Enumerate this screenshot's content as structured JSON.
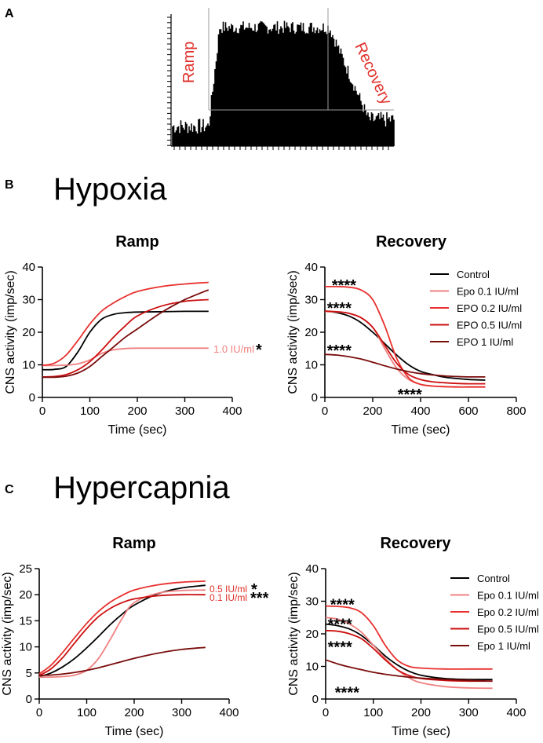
{
  "panel_letters": {
    "a": "A",
    "b": "B",
    "c": "C"
  },
  "section_titles": {
    "hypoxia": "Hypoxia",
    "hypercapnia": "Hypercapnia"
  },
  "colors": {
    "control": "#000000",
    "epo01": "#f08080",
    "epo02": "#e8312e",
    "epo05": "#cc1010",
    "epo1": "#7a0c0c",
    "annot_red": "#e0302a",
    "annot_pink": "#f08080"
  },
  "chart_data": [
    {
      "id": "A",
      "type": "bar",
      "description_labels": {
        "ramp": "Ramp",
        "recovery": "Recovery"
      },
      "title": "",
      "xlabel": "",
      "ylabel": "",
      "phases": [
        "baseline",
        "ramp",
        "plateau",
        "recovery",
        "baseline"
      ],
      "relative_activity": {
        "baseline": 0.15,
        "ramp_start": 0.15,
        "plateau": 0.9,
        "recovery_end": 0.2
      }
    },
    {
      "id": "B-ramp",
      "type": "line",
      "title": "Ramp",
      "xlabel": "Time (sec)",
      "ylabel": "CNS activity (imp/sec)",
      "xlim": [
        0,
        400
      ],
      "ylim": [
        0,
        40
      ],
      "xticks": [
        0,
        100,
        200,
        300,
        400
      ],
      "yticks": [
        0,
        10,
        20,
        30,
        40
      ],
      "annotation": {
        "text": "1.0 IU/ml",
        "star": "*",
        "y": 15
      },
      "series": [
        {
          "name": "Control",
          "color": "#000000",
          "x": [
            0,
            25,
            50,
            75,
            100,
            125,
            150,
            175,
            200,
            250,
            300,
            350
          ],
          "y": [
            8.5,
            8.6,
            9.5,
            14,
            20,
            24,
            25.5,
            26,
            26.2,
            26.3,
            26.4,
            26.4
          ]
        },
        {
          "name": "Epo 0.1 IU/ml",
          "color": "#f08080",
          "x": [
            0,
            25,
            50,
            75,
            100,
            125,
            150,
            175,
            200,
            250,
            300,
            350
          ],
          "y": [
            9.8,
            9.8,
            9.9,
            10.3,
            11.5,
            13.5,
            14.6,
            15,
            15.1,
            15.1,
            15.1,
            15.1
          ]
        },
        {
          "name": "EPO 0.2 IU/ml",
          "color": "#e8312e",
          "x": [
            0,
            25,
            50,
            75,
            100,
            125,
            150,
            175,
            200,
            250,
            300,
            350
          ],
          "y": [
            9.8,
            10.5,
            13,
            17.5,
            22.5,
            26.5,
            29,
            31,
            32.5,
            34,
            34.8,
            35.3
          ]
        },
        {
          "name": "EPO 0.5 IU/ml",
          "color": "#cc1010",
          "x": [
            0,
            25,
            50,
            75,
            100,
            125,
            150,
            175,
            200,
            250,
            300,
            350
          ],
          "y": [
            6.3,
            6.4,
            7,
            8.5,
            11,
            14.5,
            18.5,
            22,
            25,
            28,
            29.5,
            30
          ]
        },
        {
          "name": "EPO 1 IU/ml",
          "color": "#7a0c0c",
          "x": [
            0,
            25,
            50,
            75,
            100,
            125,
            150,
            175,
            200,
            250,
            300,
            350
          ],
          "y": [
            6.2,
            6.2,
            6.5,
            7.5,
            9.5,
            12.5,
            15.5,
            18.5,
            21,
            26,
            30,
            33
          ]
        }
      ]
    },
    {
      "id": "B-recovery",
      "type": "line",
      "title": "Recovery",
      "xlabel": "Time (sec)",
      "ylabel": "CNS activity (imp/sec)",
      "xlim": [
        0,
        800
      ],
      "ylim": [
        0,
        40
      ],
      "xticks": [
        0,
        200,
        400,
        600,
        800
      ],
      "yticks": [
        0,
        10,
        20,
        30,
        40
      ],
      "stars": [
        {
          "text": "****",
          "x": 80,
          "y": 35
        },
        {
          "text": "****",
          "x": 60,
          "y": 28
        },
        {
          "text": "****",
          "x": 60,
          "y": 15
        },
        {
          "text": "****",
          "x": 355,
          "y": 1.5
        }
      ],
      "legend": [
        "Control",
        "Epo 0.1 IU/ml",
        "EPO 0.2 IU/ml",
        "EPO 0.5 IU/ml",
        "EPO 1 IU/ml"
      ],
      "series": [
        {
          "name": "Control",
          "color": "#000000",
          "x": [
            0,
            50,
            100,
            150,
            200,
            250,
            300,
            350,
            400,
            450,
            500,
            550,
            600,
            670
          ],
          "y": [
            26.5,
            26,
            25,
            23,
            20,
            16.5,
            13,
            10,
            8,
            7,
            6.2,
            5.8,
            5.5,
            5.3
          ]
        },
        {
          "name": "Epo 0.1 IU/ml",
          "color": "#f08080",
          "x": [
            0,
            50,
            100,
            150,
            200,
            250,
            300,
            350,
            400,
            450,
            500,
            550,
            600,
            670
          ],
          "y": [
            26.3,
            26.2,
            25.8,
            24.5,
            21.5,
            15,
            9,
            5.5,
            4,
            3.5,
            3.3,
            3.2,
            3.2,
            3.2
          ]
        },
        {
          "name": "EPO 0.2 IU/ml",
          "color": "#e8312e",
          "x": [
            0,
            50,
            100,
            150,
            200,
            250,
            300,
            350,
            400,
            450,
            500,
            550,
            600,
            670
          ],
          "y": [
            34,
            34,
            33.8,
            33,
            30,
            22,
            12,
            6,
            4,
            3.5,
            3.3,
            3.2,
            3.2,
            3.2
          ]
        },
        {
          "name": "EPO 0.5 IU/ml",
          "color": "#cc1010",
          "x": [
            0,
            50,
            100,
            150,
            200,
            250,
            300,
            350,
            400,
            450,
            500,
            550,
            600,
            670
          ],
          "y": [
            26.5,
            26.3,
            25.8,
            24.5,
            21.5,
            16,
            10.5,
            7,
            5.5,
            4.8,
            4.5,
            4.3,
            4.2,
            4.2
          ]
        },
        {
          "name": "EPO 1 IU/ml",
          "color": "#7a0c0c",
          "x": [
            0,
            50,
            100,
            150,
            200,
            250,
            300,
            350,
            400,
            450,
            500,
            550,
            600,
            670
          ],
          "y": [
            13.2,
            13,
            12.5,
            11.8,
            10.8,
            9.7,
            8.7,
            7.9,
            7.3,
            6.9,
            6.6,
            6.4,
            6.3,
            6.3
          ]
        }
      ]
    },
    {
      "id": "C-ramp",
      "type": "line",
      "title": "Ramp",
      "xlabel": "Time (sec)",
      "ylabel": "CNS activity (imp/sec)",
      "xlim": [
        0,
        400
      ],
      "ylim": [
        0,
        25
      ],
      "xticks": [
        0,
        100,
        200,
        300,
        400
      ],
      "yticks": [
        0,
        5,
        10,
        15,
        20,
        25
      ],
      "annotations": [
        {
          "text": "0.5 IU/ml",
          "star": "*",
          "y": 21.2
        },
        {
          "text": "0.1 IU/ml",
          "star": "***",
          "y": 19.6
        }
      ],
      "series": [
        {
          "name": "Control",
          "color": "#000000",
          "x": [
            0,
            25,
            50,
            75,
            100,
            125,
            150,
            175,
            200,
            250,
            300,
            350
          ],
          "y": [
            4.3,
            5,
            6.2,
            7.8,
            9.8,
            12,
            14.3,
            16.3,
            18,
            20.2,
            21.3,
            21.8
          ]
        },
        {
          "name": "Epo 0.1 IU/ml",
          "color": "#f08080",
          "x": [
            0,
            25,
            50,
            75,
            100,
            125,
            150,
            175,
            200,
            250,
            300,
            350
          ],
          "y": [
            4.2,
            4.2,
            4.3,
            4.6,
            5.5,
            7.8,
            11.5,
            15.5,
            18.5,
            20.3,
            20.8,
            20.9
          ]
        },
        {
          "name": "Epo 0.2 IU/ml",
          "color": "#e8312e",
          "x": [
            0,
            25,
            50,
            75,
            100,
            125,
            150,
            175,
            200,
            250,
            300,
            350
          ],
          "y": [
            4.8,
            6.5,
            9,
            11.8,
            14.5,
            16.8,
            18.6,
            19.9,
            20.9,
            21.9,
            22.4,
            22.6
          ]
        },
        {
          "name": "Epo 0.5 IU/ml",
          "color": "#cc1010",
          "x": [
            0,
            25,
            50,
            75,
            100,
            125,
            150,
            175,
            200,
            250,
            300,
            350
          ],
          "y": [
            4.5,
            5.8,
            8,
            10.8,
            13.5,
            15.8,
            17.4,
            18.5,
            19.2,
            19.8,
            20,
            20
          ]
        },
        {
          "name": "Epo 1 IU/ml",
          "color": "#7a0c0c",
          "x": [
            0,
            25,
            50,
            75,
            100,
            125,
            150,
            175,
            200,
            250,
            300,
            350
          ],
          "y": [
            4.5,
            4.6,
            4.8,
            5.1,
            5.5,
            6,
            6.6,
            7.2,
            7.8,
            8.8,
            9.5,
            9.9
          ]
        }
      ]
    },
    {
      "id": "C-recovery",
      "type": "line",
      "title": "Recovery",
      "xlabel": "Time (sec)",
      "ylabel": "CNS activity (imp/sec)",
      "xlim": [
        0,
        400
      ],
      "ylim": [
        0,
        40
      ],
      "xticks": [
        0,
        100,
        200,
        300,
        400
      ],
      "yticks": [
        0,
        10,
        20,
        30,
        40
      ],
      "stars": [
        {
          "text": "****",
          "x": 35,
          "y": 29.5
        },
        {
          "text": "****",
          "x": 30,
          "y": 23.5
        },
        {
          "text": "****",
          "x": 30,
          "y": 16.5
        },
        {
          "text": "****",
          "x": 45,
          "y": 2.5
        }
      ],
      "legend": [
        "Control",
        "Epo 0.1 IU/ml",
        "Epo 0.2 IU/ml",
        "Epo 0.5 IU/ml",
        "Epo 1 IU/ml"
      ],
      "series": [
        {
          "name": "Control",
          "color": "#000000",
          "x": [
            0,
            25,
            50,
            75,
            100,
            125,
            150,
            175,
            200,
            250,
            300,
            350
          ],
          "y": [
            23,
            22.5,
            21.5,
            19.5,
            16.5,
            13.2,
            10.5,
            8.5,
            7.3,
            6.3,
            6,
            6
          ]
        },
        {
          "name": "Epo 0.1 IU/ml",
          "color": "#f08080",
          "x": [
            0,
            25,
            50,
            75,
            100,
            125,
            150,
            175,
            200,
            250,
            300,
            350
          ],
          "y": [
            25,
            24.5,
            23,
            20.5,
            16.5,
            12.5,
            9,
            6.5,
            5,
            3.8,
            3.4,
            3.3
          ]
        },
        {
          "name": "Epo 0.2 IU/ml",
          "color": "#e8312e",
          "x": [
            0,
            25,
            50,
            75,
            100,
            125,
            150,
            175,
            200,
            250,
            300,
            350
          ],
          "y": [
            28.5,
            28.4,
            28,
            26.5,
            22.5,
            16.5,
            12,
            10,
            9.5,
            9.2,
            9.2,
            9.2
          ]
        },
        {
          "name": "Epo 0.5 IU/ml",
          "color": "#cc1010",
          "x": [
            0,
            25,
            50,
            75,
            100,
            125,
            150,
            175,
            200,
            250,
            300,
            350
          ],
          "y": [
            21,
            20.8,
            20,
            18.5,
            15.5,
            12,
            9,
            7.2,
            6.3,
            5.7,
            5.5,
            5.5
          ]
        },
        {
          "name": "Epo 1 IU/ml",
          "color": "#7a0c0c",
          "x": [
            0,
            25,
            50,
            75,
            100,
            125,
            150,
            175,
            200,
            250,
            300,
            350
          ],
          "y": [
            12,
            10.8,
            9.8,
            9,
            8.2,
            7.6,
            7.1,
            6.7,
            6.4,
            6,
            5.7,
            5.5
          ]
        }
      ]
    }
  ]
}
